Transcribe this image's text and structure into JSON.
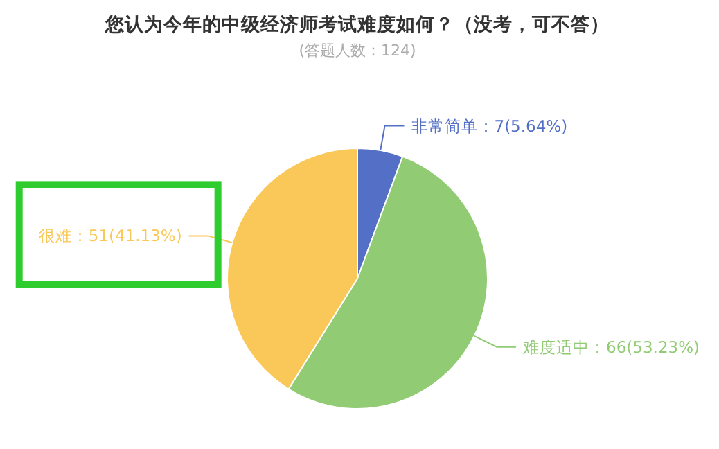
{
  "chart_data": {
    "type": "pie",
    "title": "您认为今年的中级经济师考试难度如何？（没考，可不答）",
    "subtitle": "(答题人数：124)",
    "categories": [
      "非常简单",
      "难度适中",
      "很难"
    ],
    "values": [
      7,
      66,
      51
    ],
    "value_labels": [
      "：7(5.64%)",
      "：66(53.23%)",
      "：51(41.13%)"
    ],
    "colors": [
      "#5470c6",
      "#91cc75",
      "#fac858"
    ]
  }
}
